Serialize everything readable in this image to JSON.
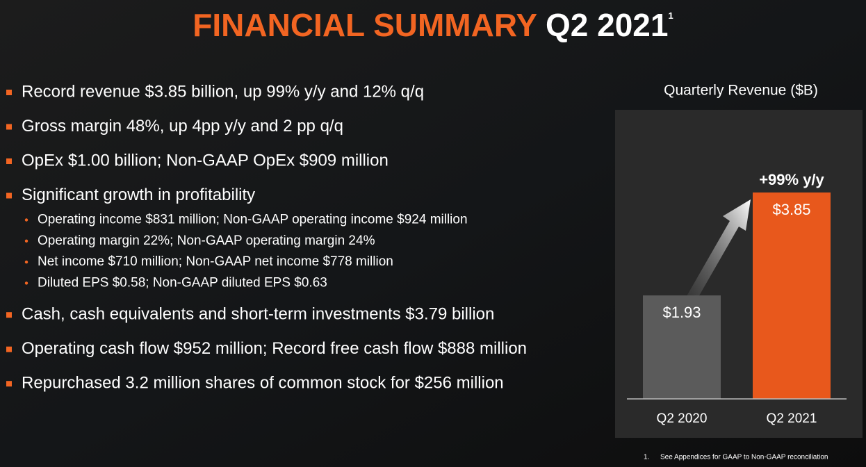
{
  "title": {
    "main": "FINANCIAL SUMMARY",
    "period": "Q2 2021",
    "note_mark": "1"
  },
  "bullets": [
    {
      "text": "Record revenue $3.85 billion, up 99% y/y and 12% q/q"
    },
    {
      "text": "Gross margin 48%, up 4pp y/y and 2 pp q/q"
    },
    {
      "text": "OpEx $1.00 billion; Non-GAAP OpEx $909 million"
    },
    {
      "text": "Significant growth in profitability",
      "sub": [
        "Operating income $831 million; Non-GAAP operating income $924 million",
        "Operating margin 22%; Non-GAAP operating margin 24%",
        "Net income $710 million; Non-GAAP net income $778 million",
        "Diluted EPS $0.58; Non-GAAP diluted EPS $0.63"
      ]
    },
    {
      "text": "Cash, cash equivalents and short-term investments $3.79 billion"
    },
    {
      "text": "Operating cash flow $952 million; Record free cash flow $888 million"
    },
    {
      "text": "Repurchased 3.2 million shares of common stock for $256 million"
    }
  ],
  "chart_data": {
    "type": "bar",
    "title": "Quarterly Revenue ($B)",
    "categories": [
      "Q2 2020",
      "Q2 2021"
    ],
    "values": [
      1.93,
      3.85
    ],
    "value_labels": [
      "$1.93",
      "$3.85"
    ],
    "colors": [
      "#5b5b5b",
      "#e8581c"
    ],
    "annotation": "+99% y/y"
  },
  "footnote": {
    "number": "1.",
    "text": "See Appendices for GAAP to Non-GAAP reconciliation"
  }
}
